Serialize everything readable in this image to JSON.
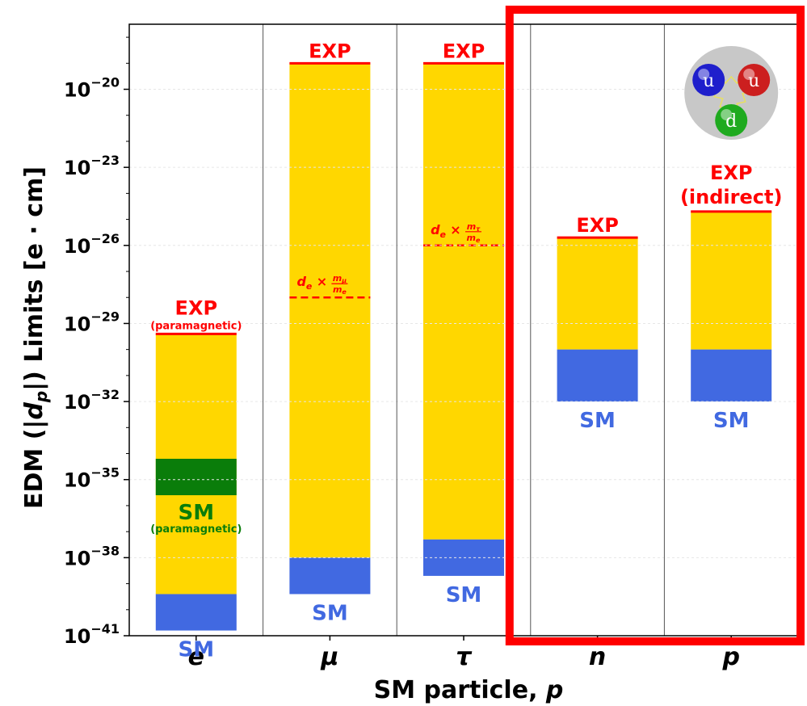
{
  "chart_data": {
    "type": "bar",
    "xlabel": "SM particle, p",
    "ylabel_prefix": "EDM",
    "ylabel_suffix": "Limits [e · cm]",
    "y_scale": "log",
    "ylim_exponent": [
      -41,
      -17.5
    ],
    "yticks": [
      {
        "exp": -20,
        "label": "10",
        "sup": "−20"
      },
      {
        "exp": -23,
        "label": "10",
        "sup": "−23"
      },
      {
        "exp": -26,
        "label": "10",
        "sup": "−26"
      },
      {
        "exp": -29,
        "label": "10",
        "sup": "−29"
      },
      {
        "exp": -32,
        "label": "10",
        "sup": "−32"
      },
      {
        "exp": -35,
        "label": "10",
        "sup": "−35"
      },
      {
        "exp": -38,
        "label": "10",
        "sup": "−38"
      },
      {
        "exp": -41,
        "label": "10",
        "sup": "−41"
      }
    ],
    "categories": [
      "e",
      "μ",
      "τ",
      "n",
      "p"
    ],
    "bars": [
      {
        "category": "e",
        "exp_limit_exp": -29.4,
        "sm_band_exp": [
          -40.8,
          -39.4
        ],
        "paramagnetic_band_exp": [
          -35.6,
          -34.2
        ],
        "exp_label": "EXP",
        "exp_sublabel": "(paramagnetic)",
        "sm_label": "SM",
        "para_label": "SM",
        "para_sublabel": "(paramagnetic)"
      },
      {
        "category": "μ",
        "exp_limit_exp": -19.0,
        "sm_band_exp": [
          -39.4,
          -38.0
        ],
        "dashed_exp": -28.0,
        "dashed_label": "d_e × m_μ/m_e",
        "exp_label": "EXP",
        "sm_label": "SM"
      },
      {
        "category": "τ",
        "exp_limit_exp": -19.0,
        "sm_band_exp": [
          -38.7,
          -37.3
        ],
        "dashed_exp": -26.0,
        "dashed_label": "d_e × m_τ/m_e",
        "exp_label": "EXP",
        "sm_label": "SM"
      },
      {
        "category": "n",
        "exp_limit_exp": -25.7,
        "sm_band_exp": [
          -32.0,
          -30.0
        ],
        "exp_label": "EXP",
        "sm_label": "SM"
      },
      {
        "category": "p",
        "exp_limit_exp": -24.7,
        "sm_band_exp": [
          -32.0,
          -30.0
        ],
        "exp_label": "EXP",
        "exp_sublabel": "(indirect)",
        "sm_label": "SM"
      }
    ],
    "highlight_categories": [
      "n",
      "p"
    ],
    "proton_glyph": {
      "quarks": [
        "u",
        "u",
        "d"
      ]
    },
    "colors": {
      "exp_fill": "#FFD700",
      "exp_line": "#FF0000",
      "sm": "#4169E1",
      "para": "#0A7D0A",
      "highlight": "#FF0000",
      "quark_u1": "#1F1FCC",
      "quark_u2": "#CC1F1F",
      "quark_d": "#1FAA1F"
    }
  }
}
